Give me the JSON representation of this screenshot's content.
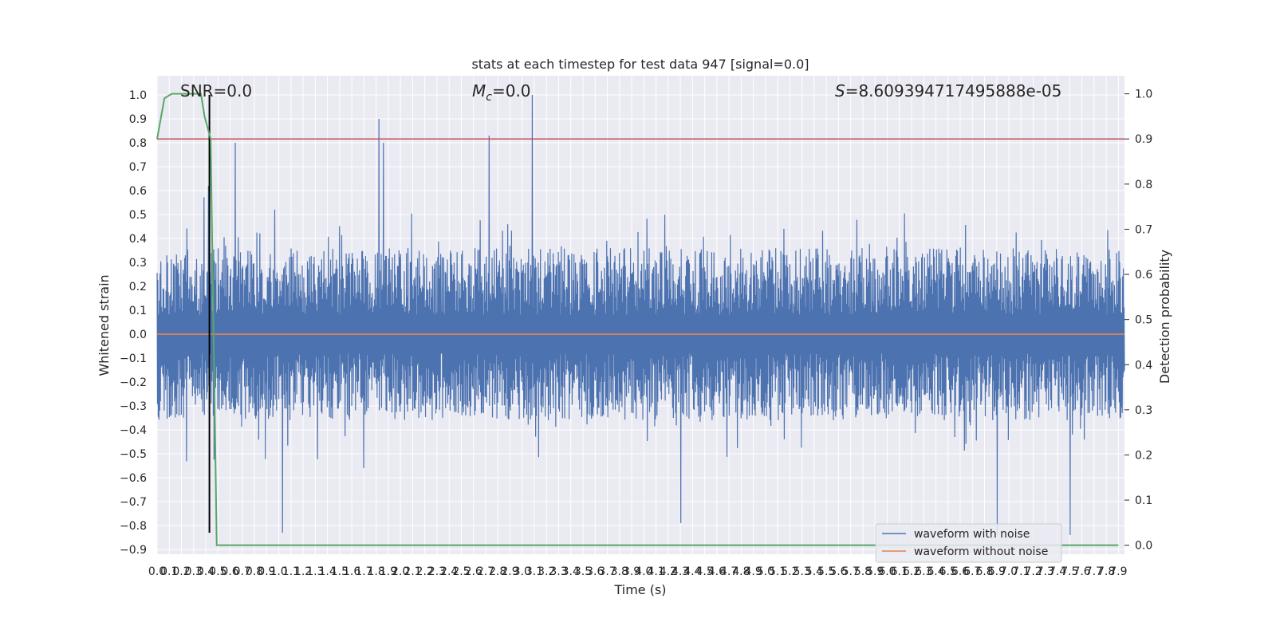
{
  "chart_data": {
    "type": "line",
    "title": "stats at each timestep for test data 947 [signal=0.0]",
    "xlabel": "Time (s)",
    "ylabel": "Whitened strain",
    "y2label": "Detection probability",
    "xlim": [
      0.0,
      7.95
    ],
    "ylim": [
      -0.92,
      1.08
    ],
    "y2lim": [
      -0.02,
      1.04
    ],
    "grid": true,
    "x_tick_step": 0.1,
    "x_ticks": [
      "0.0",
      "0.1",
      "0.2",
      "0.3",
      "0.4",
      "0.5",
      "0.6",
      "0.7",
      "0.8",
      "0.9",
      "1.0",
      "1.1",
      "1.2",
      "1.3",
      "1.4",
      "1.5",
      "1.6",
      "1.7",
      "1.8",
      "1.9",
      "2.0",
      "2.1",
      "2.2",
      "2.3",
      "2.4",
      "2.5",
      "2.6",
      "2.7",
      "2.8",
      "2.9",
      "3.0",
      "3.1",
      "3.2",
      "3.3",
      "3.4",
      "3.5",
      "3.6",
      "3.7",
      "3.8",
      "3.9",
      "4.0",
      "4.1",
      "4.2",
      "4.3",
      "4.4",
      "4.5",
      "4.6",
      "4.7",
      "4.8",
      "4.9",
      "5.0",
      "5.1",
      "5.2",
      "5.3",
      "5.4",
      "5.5",
      "5.6",
      "5.7",
      "5.8",
      "5.9",
      "6.0",
      "6.1",
      "6.2",
      "6.3",
      "6.4",
      "6.5",
      "6.6",
      "6.7",
      "6.8",
      "6.9",
      "7.0",
      "7.1",
      "7.2",
      "7.3",
      "7.4",
      "7.5",
      "7.6",
      "7.7",
      "7.8",
      "7.9"
    ],
    "y_ticks": [
      "−0.9",
      "−0.8",
      "−0.7",
      "−0.6",
      "−0.5",
      "−0.4",
      "−0.3",
      "−0.2",
      "−0.1",
      "0.0",
      "0.1",
      "0.2",
      "0.3",
      "0.4",
      "0.5",
      "0.6",
      "0.7",
      "0.8",
      "0.9",
      "1.0"
    ],
    "y2_ticks": [
      "0.0",
      "0.1",
      "0.2",
      "0.3",
      "0.4",
      "0.5",
      "0.6",
      "0.7",
      "0.8",
      "0.9",
      "1.0"
    ],
    "series": [
      {
        "name": "waveform with noise",
        "color": "#4c72b0",
        "envelope": "dense noise, typical range about -0.45 to 0.45",
        "peaks_x": [
          0.42,
          0.64,
          1.82,
          1.86,
          2.73,
          3.08
        ],
        "peaks_y": [
          0.62,
          0.8,
          0.9,
          0.8,
          0.83,
          1.0
        ],
        "troughs_x": [
          1.03,
          4.3,
          6.9,
          7.5
        ],
        "troughs_y": [
          -0.83,
          -0.79,
          -0.84,
          -0.84
        ]
      },
      {
        "name": "waveform without noise",
        "color": "#dd8452",
        "x": [
          0.0,
          7.95
        ],
        "y": [
          0.0,
          0.0
        ]
      },
      {
        "color": "#55a868",
        "axis": "right",
        "x": [
          0.0,
          0.06,
          0.12,
          0.2,
          0.3,
          0.36,
          0.39,
          0.44,
          0.49,
          7.9
        ],
        "y": [
          0.9,
          0.99,
          1.0,
          1.0,
          1.0,
          1.0,
          0.95,
          0.9,
          0.0,
          0.0
        ]
      }
    ],
    "threshold": {
      "axis": "right",
      "value": 0.9,
      "color": "#c44e52"
    },
    "marker_line": {
      "x": 0.43,
      "y_from": -0.83,
      "y_to": 1.0,
      "color": "#000000"
    },
    "annotations": {
      "snr": "SNR=0.0",
      "mc_symbol": "M",
      "mc_sub": "c",
      "mc_value": "=0.0",
      "s_symbol": "S",
      "s_value": "=8.609394717495888e-05"
    },
    "legend": {
      "placement": "lower-right",
      "entries": [
        {
          "label": "waveform with noise",
          "color": "#4c72b0"
        },
        {
          "label": "waveform without noise",
          "color": "#dd8452"
        }
      ]
    },
    "colors": {
      "background": "#eaeaf2",
      "grid": "#ffffff"
    }
  }
}
